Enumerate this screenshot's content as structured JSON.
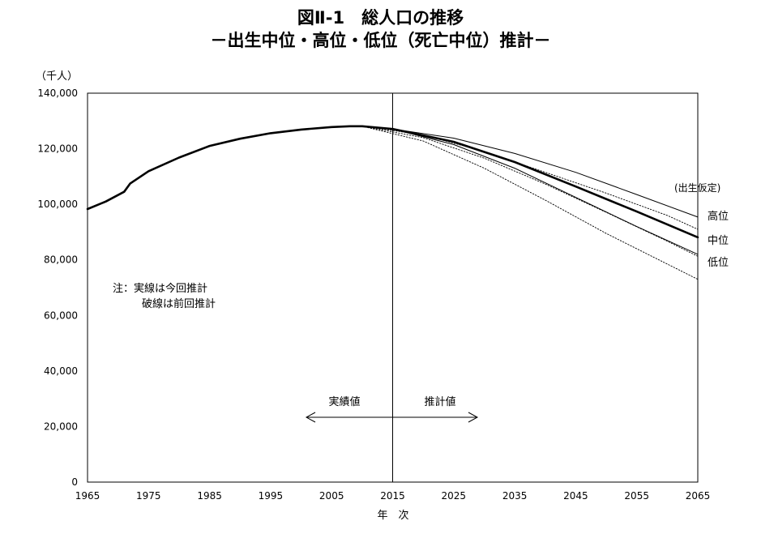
{
  "chart_data": {
    "type": "line",
    "title": "図Ⅱ-1　総人口の推移",
    "subtitle": "－出生中位・高位・低位（死亡中位）推計－",
    "ylabel": "（千人）",
    "xlabel": "年　次",
    "xlim": [
      1965,
      2065
    ],
    "ylim": [
      0,
      140000
    ],
    "grid": false,
    "x_ticks": [
      "1965",
      "1975",
      "1985",
      "1995",
      "2005",
      "2015",
      "2025",
      "2035",
      "2045",
      "2055",
      "2065"
    ],
    "y_ticks": [
      "0",
      "20,000",
      "40,000",
      "60,000",
      "80,000",
      "100,000",
      "120,000",
      "140,000"
    ],
    "divider_year": 2015,
    "actual_label": "実績値",
    "projected_label": "推計値",
    "note_line1": "注：実線は今回推計",
    "note_line2": "破線は前回推計",
    "legend_heading": "(出生仮定)",
    "legend_labels": {
      "high": "高位",
      "medium": "中位",
      "low": "低位"
    },
    "series": [
      {
        "name": "実績値",
        "style": "actual",
        "points": [
          [
            1965,
            98300
          ],
          [
            1968,
            101000
          ],
          [
            1971,
            104500
          ],
          [
            1972,
            107500
          ],
          [
            1975,
            111900
          ],
          [
            1980,
            116800
          ],
          [
            1985,
            121000
          ],
          [
            1990,
            123600
          ],
          [
            1995,
            125600
          ],
          [
            2000,
            126900
          ],
          [
            2005,
            127800
          ],
          [
            2008,
            128100
          ],
          [
            2010,
            128100
          ],
          [
            2015,
            127100
          ]
        ]
      },
      {
        "name": "中位",
        "style": "current-medium",
        "points": [
          [
            2015,
            127100
          ],
          [
            2025,
            122500
          ],
          [
            2035,
            115200
          ],
          [
            2045,
            106400
          ],
          [
            2055,
            97400
          ],
          [
            2065,
            88100
          ]
        ]
      },
      {
        "name": "高位",
        "style": "current-high",
        "points": [
          [
            2015,
            127100
          ],
          [
            2025,
            123800
          ],
          [
            2035,
            118300
          ],
          [
            2045,
            111500
          ],
          [
            2055,
            103500
          ],
          [
            2065,
            95400
          ]
        ]
      },
      {
        "name": "低位",
        "style": "current-low",
        "points": [
          [
            2015,
            127100
          ],
          [
            2025,
            121500
          ],
          [
            2035,
            113000
          ],
          [
            2045,
            102500
          ],
          [
            2055,
            92000
          ],
          [
            2065,
            82000
          ]
        ]
      },
      {
        "style": "previous-high",
        "points": [
          [
            2010,
            128100
          ],
          [
            2020,
            125000
          ],
          [
            2030,
            119000
          ],
          [
            2040,
            111500
          ],
          [
            2050,
            104000
          ],
          [
            2060,
            96000
          ],
          [
            2065,
            91000
          ]
        ]
      },
      {
        "style": "previous-medium",
        "points": [
          [
            2010,
            128100
          ],
          [
            2020,
            124000
          ],
          [
            2030,
            116600
          ],
          [
            2040,
            107300
          ],
          [
            2050,
            97100
          ],
          [
            2060,
            86700
          ],
          [
            2065,
            81300
          ]
        ]
      },
      {
        "style": "previous-low",
        "points": [
          [
            2010,
            128100
          ],
          [
            2020,
            122800
          ],
          [
            2030,
            113000
          ],
          [
            2040,
            101500
          ],
          [
            2050,
            89500
          ],
          [
            2060,
            78500
          ],
          [
            2065,
            73000
          ]
        ]
      }
    ]
  }
}
